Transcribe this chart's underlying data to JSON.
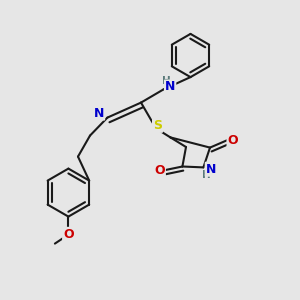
{
  "bg_color": "#e6e6e6",
  "bond_color": "#1a1a1a",
  "bond_width": 1.5,
  "atom_colors": {
    "N": "#0000cc",
    "O": "#cc0000",
    "S": "#cccc00",
    "H": "#5a7a7a",
    "C": "#1a1a1a"
  },
  "font_size": 9.0,
  "figsize": [
    3.0,
    3.0
  ],
  "dpi": 100
}
